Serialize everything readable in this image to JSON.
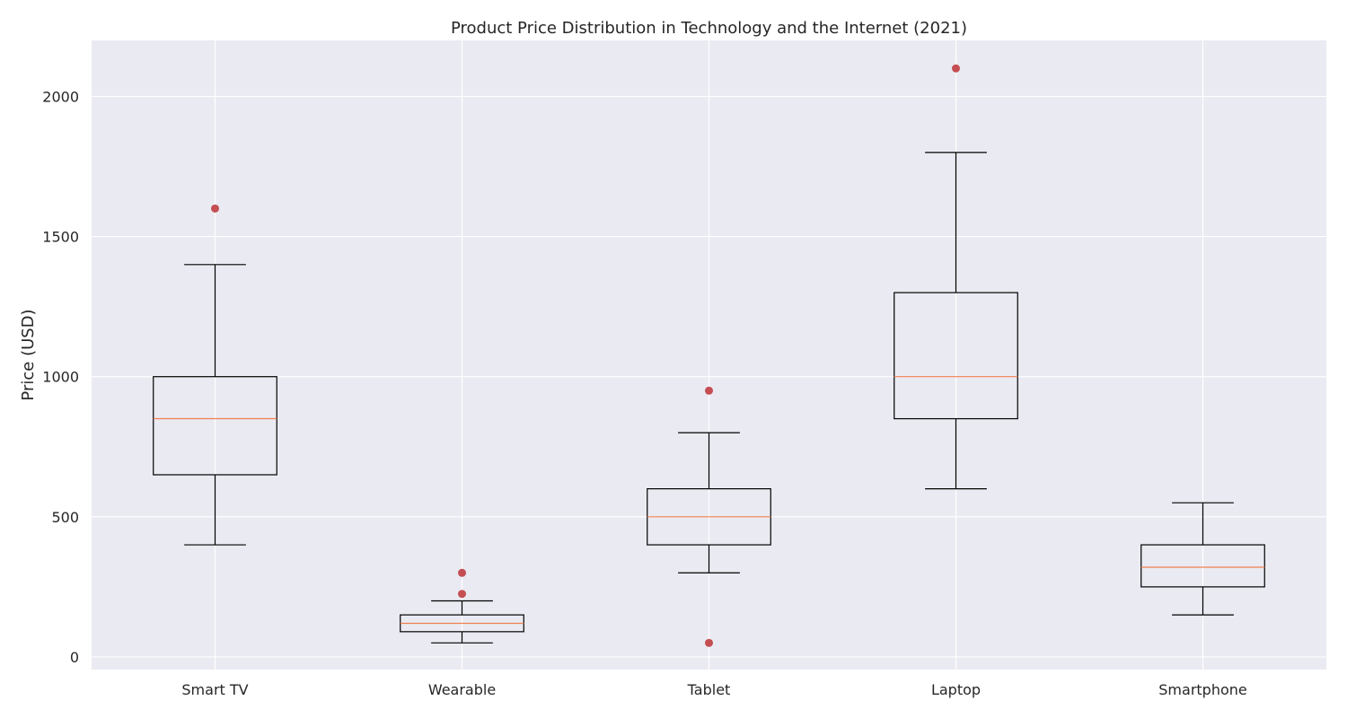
{
  "chart_data": {
    "type": "box",
    "title": "Product Price Distribution in Technology and the Internet (2021)",
    "xlabel": "",
    "ylabel": "Price (USD)",
    "ylim": [
      -45,
      2200
    ],
    "yticks": [
      0,
      500,
      1000,
      1500,
      2000
    ],
    "grid": true,
    "categories": [
      "Smart TV",
      "Wearable",
      "Tablet",
      "Laptop",
      "Smartphone"
    ],
    "boxes": [
      {
        "category": "Smart TV",
        "whisker_low": 400,
        "q1": 650,
        "median": 850,
        "q3": 1000,
        "whisker_high": 1400,
        "outliers": [
          1600
        ]
      },
      {
        "category": "Wearable",
        "whisker_low": 50,
        "q1": 90,
        "median": 120,
        "q3": 150,
        "whisker_high": 200,
        "outliers": [
          225,
          300
        ]
      },
      {
        "category": "Tablet",
        "whisker_low": 300,
        "q1": 400,
        "median": 500,
        "q3": 600,
        "whisker_high": 800,
        "outliers": [
          950,
          50
        ]
      },
      {
        "category": "Laptop",
        "whisker_low": 600,
        "q1": 850,
        "median": 1000,
        "q3": 1300,
        "whisker_high": 1800,
        "outliers": [
          2100
        ]
      },
      {
        "category": "Smartphone",
        "whisker_low": 150,
        "q1": 250,
        "median": 320,
        "q3": 400,
        "whisker_high": 550,
        "outliers": []
      }
    ],
    "colors": {
      "plot_background": "#eaeaf2",
      "grid": "#ffffff",
      "box": "#000000",
      "median": "#f07f4f",
      "outlier": "#c44e52"
    }
  }
}
